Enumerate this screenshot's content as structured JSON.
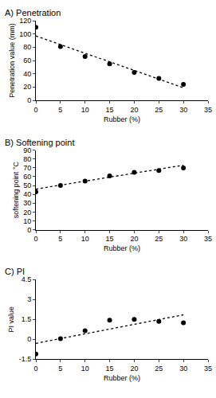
{
  "chart_data": [
    {
      "type": "scatter",
      "title": "A) Penetration",
      "x_label": "Rubber (%)",
      "y_label": "Penetration value (mm)",
      "x": [
        0,
        5,
        10,
        15,
        20,
        25,
        30
      ],
      "values": [
        110,
        81,
        66,
        55,
        42,
        33,
        24
      ],
      "color": "#000000",
      "marker": "circle",
      "grid": false,
      "trend": {
        "x": [
          0,
          30
        ],
        "values": [
          97,
          19
        ],
        "line_style": "dotted"
      },
      "xlim": [
        0,
        35
      ],
      "xticks": [
        0,
        5,
        10,
        15,
        20,
        25,
        30,
        35
      ],
      "ylim": [
        0,
        120
      ],
      "yticks": [
        0,
        20,
        40,
        60,
        80,
        100,
        120
      ]
    },
    {
      "type": "scatter",
      "title": "B) Softening point",
      "x_label": "Rubber (%)",
      "y_label": "softening point °C",
      "x": [
        0,
        5,
        10,
        15,
        20,
        25,
        30
      ],
      "values": [
        43,
        50,
        55,
        61,
        65,
        67,
        70
      ],
      "color": "#000000",
      "marker": "circle",
      "grid": false,
      "trend": {
        "x": [
          0,
          30
        ],
        "values": [
          46,
          73
        ],
        "line_style": "dotted"
      },
      "xlim": [
        0,
        35
      ],
      "xticks": [
        0,
        5,
        10,
        15,
        20,
        25,
        30,
        35
      ],
      "ylim": [
        0,
        90
      ],
      "yticks": [
        0,
        10,
        20,
        30,
        40,
        50,
        60,
        70,
        80,
        90
      ]
    },
    {
      "type": "scatter",
      "title": "C) PI",
      "x_label": "Rubber (%)",
      "y_label": "PI value",
      "x": [
        0,
        5,
        10,
        15,
        20,
        25,
        30
      ],
      "values": [
        -1.1,
        0.05,
        0.65,
        1.45,
        1.5,
        1.35,
        1.25
      ],
      "color": "#000000",
      "marker": "circle",
      "grid": false,
      "trend": {
        "x": [
          0,
          30
        ],
        "values": [
          -0.3,
          1.85
        ],
        "line_style": "dotted"
      },
      "xlim": [
        0,
        35
      ],
      "xticks": [
        0,
        5,
        10,
        15,
        20,
        25,
        30,
        35
      ],
      "ylim": [
        -1.5,
        4.5
      ],
      "yticks": [
        -1.5,
        0,
        1.5,
        3,
        4.5
      ]
    }
  ]
}
